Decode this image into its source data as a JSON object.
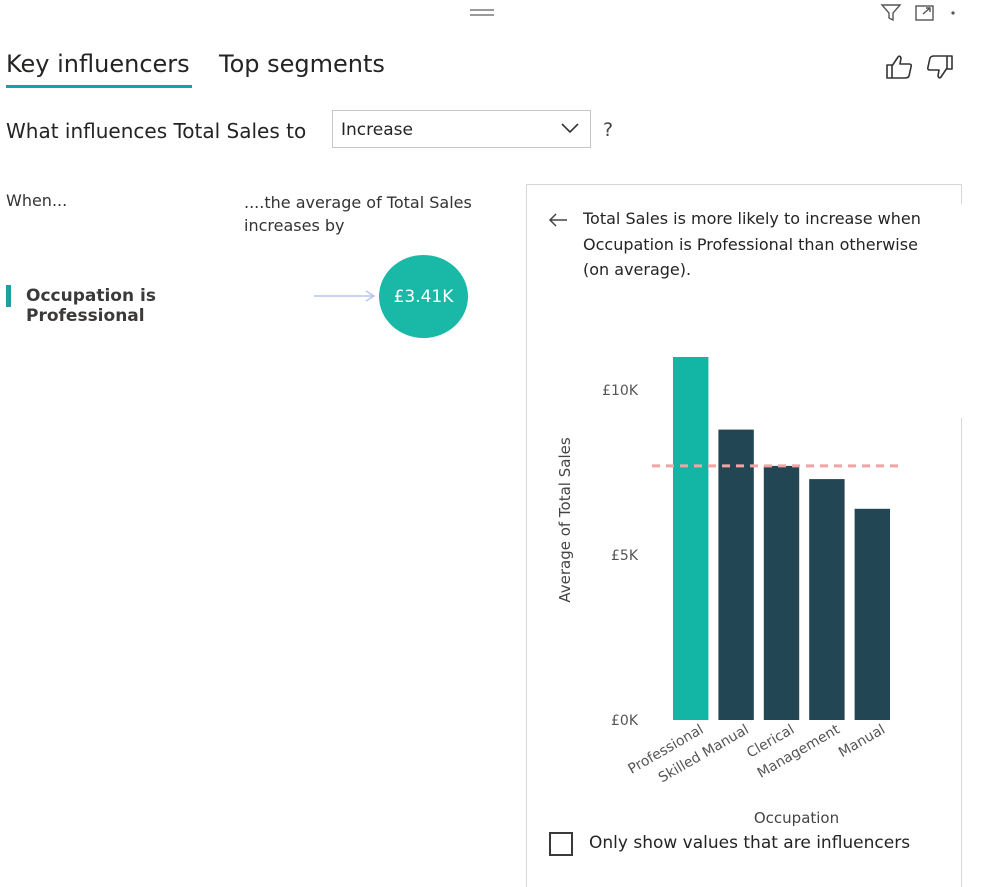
{
  "window": {
    "drag_handle_icon": "drag-handle-icon",
    "filter_icon": "filter-icon",
    "focus_mode_icon": "focus-mode-icon",
    "more_options_icon": "more-options-icon"
  },
  "tabs": [
    {
      "label": "Key influencers",
      "active": true
    },
    {
      "label": "Top segments",
      "active": false
    }
  ],
  "feedback": {
    "thumbs_up_icon": "thumbs-up-icon",
    "thumbs_down_icon": "thumbs-down-icon"
  },
  "question": {
    "prefix": "What influences Total Sales to",
    "dropdown_value": "Increase",
    "help": "?"
  },
  "influencers": {
    "when_header": "When...",
    "effect_header": "....the average of Total Sales increases by",
    "items": [
      {
        "label": "Occupation is Professional",
        "value": "£3.41K"
      }
    ]
  },
  "detail": {
    "explanation": "Total Sales is more likely to increase when Occupation is Professional than otherwise (on average).",
    "only_influencers_label": "Only show values that are influencers",
    "only_influencers_checked": false
  },
  "colors": {
    "accent": "#1aa0a2",
    "highlight_bar": "#13b5a5",
    "other_bar": "#234654",
    "average_line": "#f4a3a3"
  },
  "chart_data": {
    "type": "bar",
    "xlabel": "Occupation",
    "ylabel": "Average of Total Sales",
    "categories": [
      "Professional",
      "Skilled Manual",
      "Clerical",
      "Management",
      "Manual"
    ],
    "values": [
      11000,
      8800,
      7700,
      7300,
      6400
    ],
    "highlighted": "Professional",
    "average_reference": 7700,
    "yticks": [
      0,
      5000,
      10000
    ],
    "ytick_labels": [
      "£0K",
      "£5K",
      "£10K"
    ],
    "ylim": [
      0,
      11000
    ],
    "grid": false
  }
}
